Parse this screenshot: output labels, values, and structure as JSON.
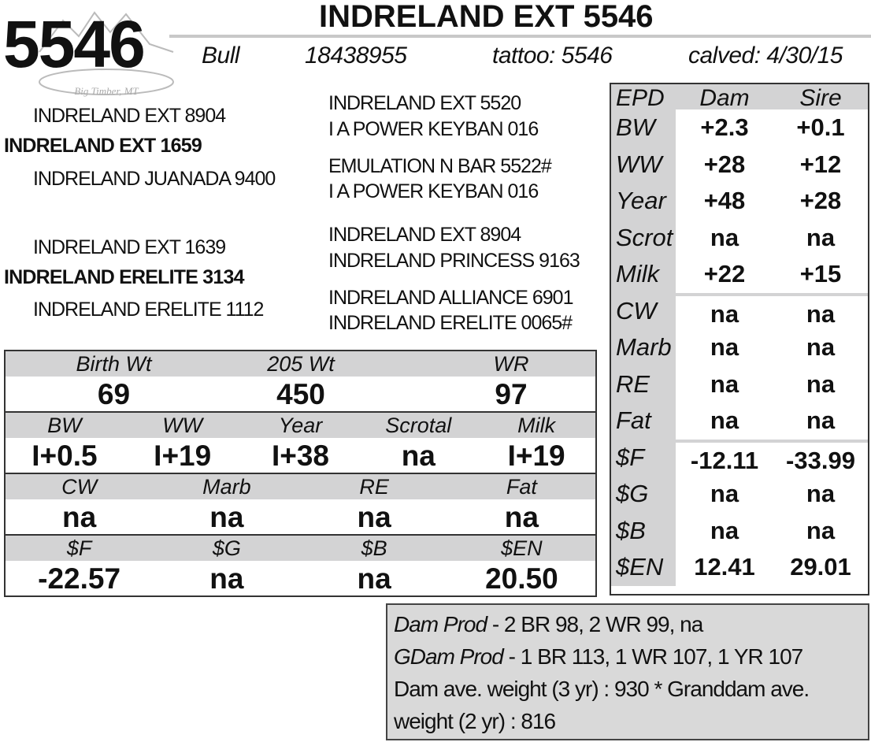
{
  "header": {
    "lot_number": "5546",
    "name": "INDRELAND EXT 5546",
    "sex": "Bull",
    "registration": "18438955",
    "tattoo": "tattoo: 5546",
    "calved": "calved: 4/30/15",
    "logo_text": "Big Timber, MT"
  },
  "pedigree": {
    "sire": "INDRELAND EXT 1659",
    "sire_sire": "INDRELAND EXT 8904",
    "sire_dam": "INDRELAND JUANADA 9400",
    "sire_sire_sire": "INDRELAND EXT 5520",
    "sire_sire_dam": "I A POWER KEYBAN 016",
    "sire_dam_sire": "EMULATION N BAR 5522#",
    "sire_dam_dam": "I A POWER KEYBAN 016",
    "dam": "INDRELAND ERELITE 3134",
    "dam_sire": "INDRELAND EXT 1639",
    "dam_dam": "INDRELAND ERELITE 1112",
    "dam_sire_sire": "INDRELAND EXT 8904",
    "dam_sire_dam": "INDRELAND PRINCESS 9163",
    "dam_dam_sire": "INDRELAND ALLIANCE 6901",
    "dam_dam_dam": "INDRELAND ERELITE 0065#"
  },
  "performance": {
    "weights": {
      "headers": [
        "Birth Wt",
        "205 Wt",
        "WR"
      ],
      "values": [
        "69",
        "450",
        "97"
      ]
    },
    "epds": {
      "headers": [
        "BW",
        "WW",
        "Year",
        "Scrotal",
        "Milk"
      ],
      "values": [
        "I+0.5",
        "I+19",
        "I+38",
        "na",
        "I+19"
      ]
    },
    "carcass": {
      "headers": [
        "CW",
        "Marb",
        "RE",
        "Fat"
      ],
      "values": [
        "na",
        "na",
        "na",
        "na"
      ]
    },
    "indexes": {
      "headers": [
        "$F",
        "$G",
        "$B",
        "$EN"
      ],
      "values": [
        "-22.57",
        "na",
        "na",
        "20.50"
      ]
    }
  },
  "epd_table": {
    "headers": [
      "EPD",
      "Dam",
      "Sire"
    ],
    "rows": [
      {
        "label": "BW",
        "dam": "+2.3",
        "sire": "+0.1"
      },
      {
        "label": "WW",
        "dam": "+28",
        "sire": "+12"
      },
      {
        "label": "Year",
        "dam": "+48",
        "sire": "+28"
      },
      {
        "label": "Scrot",
        "dam": "na",
        "sire": "na"
      },
      {
        "label": "Milk",
        "dam": "+22",
        "sire": "+15"
      },
      {
        "label": "CW",
        "dam": "na",
        "sire": "na"
      },
      {
        "label": "Marb",
        "dam": "na",
        "sire": "na"
      },
      {
        "label": "RE",
        "dam": "na",
        "sire": "na"
      },
      {
        "label": "Fat",
        "dam": "na",
        "sire": "na"
      },
      {
        "label": "$F",
        "dam": "-12.11",
        "sire": "-33.99"
      },
      {
        "label": "$G",
        "dam": "na",
        "sire": "na"
      },
      {
        "label": "$B",
        "dam": "na",
        "sire": "na"
      },
      {
        "label": "$EN",
        "dam": "12.41",
        "sire": "29.01"
      }
    ]
  },
  "production": {
    "dam_prod_label": "Dam Prod",
    "dam_prod_value": " - 2 BR 98, 2 WR 99, na",
    "gdam_prod_label": "GDam Prod",
    "gdam_prod_value": " - 1 BR 113, 1 WR 107, 1 YR 107",
    "weights_line1": "Dam ave. weight (3 yr) : 930 * Granddam ave.",
    "weights_line2": "weight (2 yr) : 816"
  }
}
